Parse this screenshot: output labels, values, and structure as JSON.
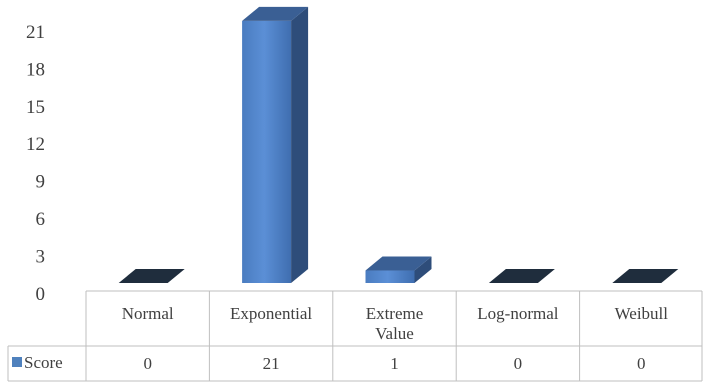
{
  "chart_data": {
    "type": "bar",
    "style": "3d-column-with-data-table",
    "title": "",
    "xlabel": "",
    "ylabel": "",
    "categories": [
      "Normal",
      "Exponential",
      "Extreme Value",
      "Log-normal",
      "Weibull"
    ],
    "series": [
      {
        "name": "Score",
        "values": [
          0,
          21,
          1,
          0,
          0
        ],
        "color": "#4f81bd"
      }
    ],
    "ylim": [
      0,
      21
    ],
    "yticks": [
      0,
      3,
      6,
      9,
      12,
      15,
      18,
      21
    ],
    "grid": false,
    "legend": "data-table-left"
  }
}
